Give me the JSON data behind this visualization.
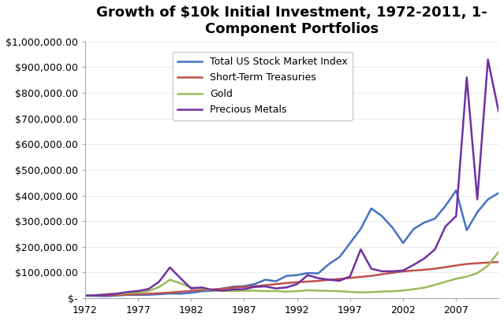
{
  "title": "Growth of $10k Initial Investment, 1972-2011, 1-\nComponent Portfolios",
  "years": [
    1972,
    1973,
    1974,
    1975,
    1976,
    1977,
    1978,
    1979,
    1980,
    1981,
    1982,
    1983,
    1984,
    1985,
    1986,
    1987,
    1988,
    1989,
    1990,
    1991,
    1992,
    1993,
    1994,
    1995,
    1996,
    1997,
    1998,
    1999,
    2000,
    2001,
    2002,
    2003,
    2004,
    2005,
    2006,
    2007,
    2008,
    2009,
    2010,
    2011
  ],
  "total_us_stock": [
    10000,
    9200,
    7800,
    10500,
    13000,
    12500,
    13500,
    15500,
    18500,
    17500,
    21000,
    27000,
    29000,
    38000,
    45000,
    47000,
    55000,
    72000,
    66000,
    87000,
    90000,
    98000,
    97000,
    133000,
    160000,
    215000,
    270000,
    350000,
    320000,
    275000,
    215000,
    270000,
    295000,
    310000,
    360000,
    420000,
    265000,
    335000,
    385000,
    410000
  ],
  "short_term_treasuries": [
    10000,
    10800,
    11800,
    12900,
    14100,
    15500,
    17200,
    19500,
    22000,
    25000,
    28500,
    31200,
    34200,
    37600,
    41000,
    43600,
    46800,
    50500,
    55000,
    59300,
    62000,
    64800,
    67400,
    71500,
    75200,
    79100,
    83000,
    87000,
    93200,
    99300,
    104600,
    107800,
    111000,
    115000,
    121000,
    127500,
    133500,
    136200,
    138900,
    141000
  ],
  "gold": [
    10000,
    12500,
    16000,
    17000,
    19500,
    22000,
    28000,
    44000,
    72000,
    58000,
    42000,
    38000,
    30000,
    28500,
    28000,
    29000,
    29500,
    27500,
    28000,
    25500,
    27500,
    31000,
    29500,
    28500,
    27500,
    24500,
    22500,
    23500,
    26000,
    27000,
    30000,
    35000,
    41000,
    52000,
    64000,
    76000,
    84000,
    98000,
    127000,
    180000
  ],
  "precious_metals": [
    10000,
    11000,
    14000,
    18000,
    24000,
    28000,
    36000,
    65000,
    120000,
    78000,
    38000,
    42000,
    32000,
    30000,
    34000,
    35000,
    44000,
    46000,
    38000,
    42000,
    55000,
    90000,
    78000,
    72000,
    68000,
    85000,
    190000,
    115000,
    105000,
    105000,
    108000,
    130000,
    155000,
    190000,
    280000,
    320000,
    860000,
    385000,
    930000,
    730000
  ],
  "colors": {
    "total_us_stock": "#4472C4",
    "short_term_treasuries": "#C0504D",
    "gold": "#9BBB59",
    "precious_metals": "#7030A0"
  },
  "ylim": [
    0,
    1000000
  ],
  "xlim": [
    1972,
    2011
  ],
  "xticks": [
    1972,
    1977,
    1982,
    1987,
    1992,
    1997,
    2002,
    2007
  ],
  "yticks": [
    0,
    100000,
    200000,
    300000,
    400000,
    500000,
    600000,
    700000,
    800000,
    900000,
    1000000
  ],
  "ytick_labels": [
    "$-",
    "$100,000.00",
    "$200,000.00",
    "$300,000.00",
    "$400,000.00",
    "$500,000.00",
    "$600,000.00",
    "$700,000.00",
    "$800,000.00",
    "$900,000.00",
    "$1,000,000.00"
  ],
  "legend_labels": [
    "Total US Stock Market Index",
    "Short-Term Treasuries",
    "Gold",
    "Precious Metals"
  ],
  "line_width": 1.8,
  "bg_color": "#FFFFFF",
  "plot_bg_color": "#FFFFFF"
}
